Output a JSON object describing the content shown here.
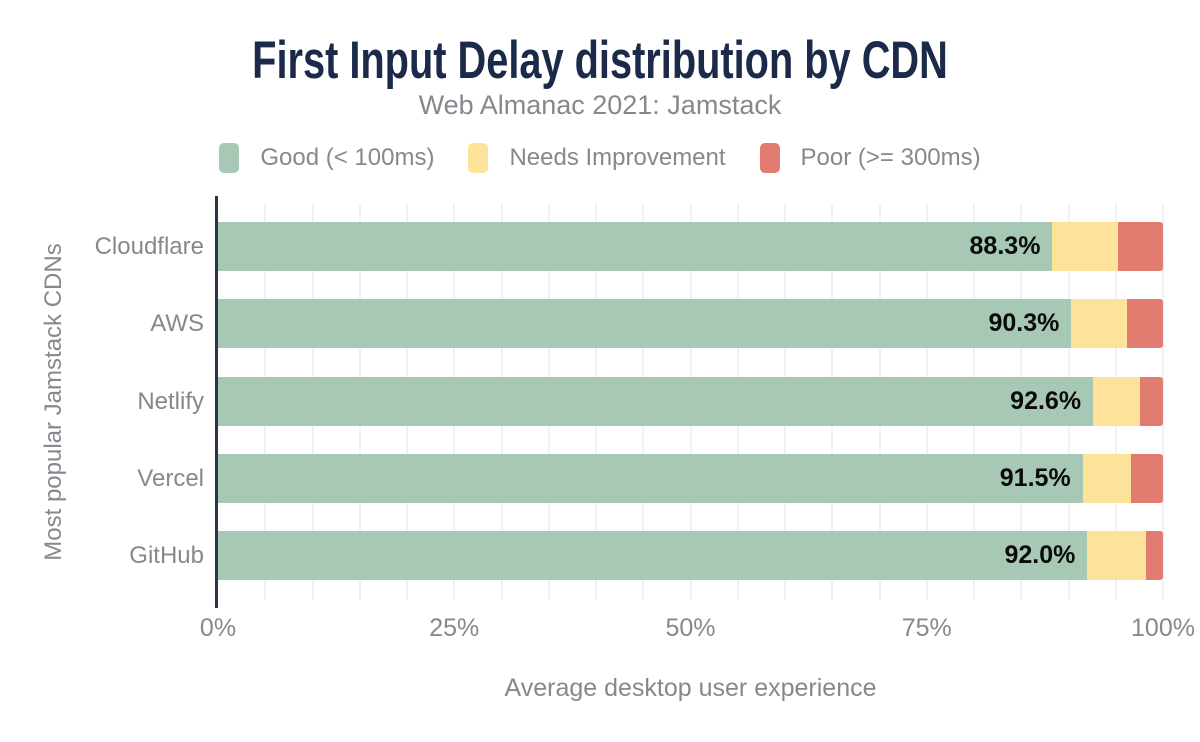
{
  "chart_data": {
    "type": "bar",
    "orientation": "horizontal",
    "stacked": true,
    "title": "First Input Delay distribution by CDN",
    "subtitle": "Web Almanac 2021: Jamstack",
    "xlabel": "Average desktop user experience",
    "ylabel": "Most popular Jamstack CDNs",
    "categories": [
      "Cloudflare",
      "AWS",
      "Netlify",
      "Vercel",
      "GitHub"
    ],
    "series": [
      {
        "name": "Good (< 100ms)",
        "color": "#a7c8b4",
        "values": [
          88.3,
          90.3,
          92.6,
          91.5,
          92.0
        ]
      },
      {
        "name": "Needs Improvement",
        "color": "#fde29a",
        "values": [
          6.9,
          5.9,
          5.0,
          5.1,
          6.2
        ]
      },
      {
        "name": "Poor (>= 300ms)",
        "color": "#e37c70",
        "values": [
          4.8,
          3.8,
          2.4,
          3.4,
          1.8
        ]
      }
    ],
    "bar_labels": [
      "88.3%",
      "90.3%",
      "92.6%",
      "91.5%",
      "92.0%"
    ],
    "x_ticks": [
      "0%",
      "25%",
      "50%",
      "75%",
      "100%"
    ],
    "xlim": [
      0,
      100
    ],
    "gridline_step_pct": 5,
    "legend_position": "top"
  },
  "colors": {
    "background": "#ffffff",
    "title_text": "#1b2a49",
    "secondary_text": "#85898e",
    "bar_label_text": "#0a0a0a",
    "y_axis_line": "#2c3545",
    "gridline": "#f0f1f2",
    "good": "#a7c8b4",
    "needs_improvement": "#fde29a",
    "poor": "#e37c70"
  }
}
